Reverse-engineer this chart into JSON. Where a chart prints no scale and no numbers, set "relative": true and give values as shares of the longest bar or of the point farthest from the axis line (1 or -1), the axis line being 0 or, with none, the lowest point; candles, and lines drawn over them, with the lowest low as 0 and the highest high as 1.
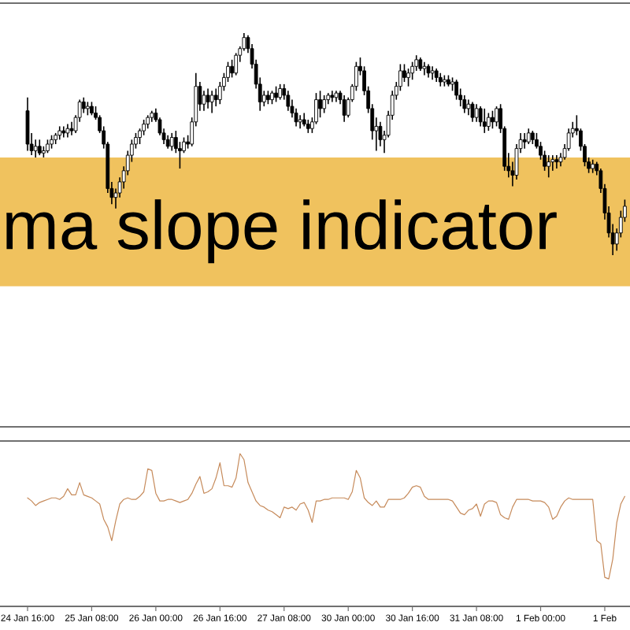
{
  "chart_data": [
    {
      "type": "candlestick",
      "relative": true,
      "color": "#000000",
      "categories": [
        null,
        null,
        null,
        null,
        null,
        null,
        null,
        null,
        null,
        null,
        null,
        null,
        null,
        null,
        null,
        null,
        null,
        null,
        null,
        null,
        null,
        null,
        null,
        null,
        null,
        null,
        null,
        null,
        null,
        null,
        null,
        null,
        null,
        null,
        null,
        null,
        null,
        null,
        null,
        null,
        null,
        null,
        null,
        null,
        null,
        null,
        null,
        null,
        null,
        null,
        null,
        null,
        null,
        null,
        null,
        null,
        null,
        null,
        null,
        null,
        null,
        null,
        null,
        null,
        null,
        null,
        null,
        null,
        null,
        null,
        null,
        null,
        null,
        null,
        null,
        null,
        null,
        null,
        null,
        null,
        null,
        null,
        null,
        null,
        null,
        null,
        null,
        null,
        null,
        null,
        null,
        null,
        null,
        null,
        null,
        null,
        null,
        null,
        null,
        null,
        null,
        null,
        null,
        null,
        null,
        null,
        null,
        null,
        null,
        null,
        null,
        null,
        null,
        null,
        null,
        null,
        null,
        null,
        null,
        null,
        null,
        null,
        null,
        null,
        null,
        null,
        null,
        null,
        null,
        null,
        null,
        null,
        null,
        null,
        null,
        null,
        null,
        null,
        null,
        null,
        null,
        null,
        null,
        null,
        null,
        null,
        null,
        null,
        null,
        null
      ],
      "ohlc": [
        [
          0.65,
          0.71,
          0.47,
          0.5
        ],
        [
          0.5,
          0.55,
          0.45,
          0.47
        ],
        [
          0.47,
          0.52,
          0.44,
          0.49
        ],
        [
          0.49,
          0.52,
          0.45,
          0.46
        ],
        [
          0.46,
          0.49,
          0.44,
          0.47
        ],
        [
          0.47,
          0.52,
          0.46,
          0.5
        ],
        [
          0.5,
          0.54,
          0.48,
          0.52
        ],
        [
          0.52,
          0.55,
          0.5,
          0.54
        ],
        [
          0.54,
          0.58,
          0.52,
          0.56
        ],
        [
          0.56,
          0.58,
          0.53,
          0.55
        ],
        [
          0.55,
          0.59,
          0.53,
          0.57
        ],
        [
          0.57,
          0.6,
          0.54,
          0.56
        ],
        [
          0.56,
          0.63,
          0.55,
          0.62
        ],
        [
          0.62,
          0.7,
          0.6,
          0.69
        ],
        [
          0.69,
          0.71,
          0.64,
          0.66
        ],
        [
          0.66,
          0.69,
          0.63,
          0.67
        ],
        [
          0.67,
          0.69,
          0.63,
          0.64
        ],
        [
          0.64,
          0.67,
          0.61,
          0.62
        ],
        [
          0.62,
          0.63,
          0.55,
          0.56
        ],
        [
          0.56,
          0.58,
          0.48,
          0.5
        ],
        [
          0.5,
          0.51,
          0.28,
          0.3
        ],
        [
          0.3,
          0.33,
          0.23,
          0.26
        ],
        [
          0.26,
          0.3,
          0.21,
          0.28
        ],
        [
          0.28,
          0.35,
          0.26,
          0.33
        ],
        [
          0.33,
          0.4,
          0.3,
          0.38
        ],
        [
          0.38,
          0.47,
          0.36,
          0.45
        ],
        [
          0.45,
          0.52,
          0.42,
          0.5
        ],
        [
          0.5,
          0.55,
          0.48,
          0.53
        ],
        [
          0.53,
          0.57,
          0.5,
          0.56
        ],
        [
          0.56,
          0.61,
          0.54,
          0.59
        ],
        [
          0.59,
          0.63,
          0.57,
          0.62
        ],
        [
          0.62,
          0.65,
          0.6,
          0.64
        ],
        [
          0.64,
          0.66,
          0.6,
          0.61
        ],
        [
          0.61,
          0.62,
          0.54,
          0.55
        ],
        [
          0.55,
          0.57,
          0.5,
          0.52
        ],
        [
          0.52,
          0.54,
          0.48,
          0.49
        ],
        [
          0.49,
          0.55,
          0.47,
          0.53
        ],
        [
          0.53,
          0.56,
          0.46,
          0.48
        ],
        [
          0.48,
          0.51,
          0.39,
          0.47
        ],
        [
          0.47,
          0.53,
          0.46,
          0.51
        ],
        [
          0.51,
          0.54,
          0.48,
          0.5
        ],
        [
          0.5,
          0.62,
          0.49,
          0.6
        ],
        [
          0.6,
          0.82,
          0.58,
          0.76
        ],
        [
          0.76,
          0.78,
          0.65,
          0.68
        ],
        [
          0.68,
          0.74,
          0.65,
          0.72
        ],
        [
          0.72,
          0.75,
          0.66,
          0.69
        ],
        [
          0.69,
          0.74,
          0.64,
          0.72
        ],
        [
          0.72,
          0.75,
          0.67,
          0.7
        ],
        [
          0.7,
          0.78,
          0.68,
          0.76
        ],
        [
          0.76,
          0.82,
          0.74,
          0.8
        ],
        [
          0.8,
          0.87,
          0.78,
          0.85
        ],
        [
          0.85,
          0.88,
          0.8,
          0.82
        ],
        [
          0.82,
          0.91,
          0.81,
          0.9
        ],
        [
          0.9,
          0.94,
          0.87,
          0.93
        ],
        [
          0.93,
          1.0,
          0.92,
          0.98
        ],
        [
          0.98,
          0.99,
          0.91,
          0.93
        ],
        [
          0.93,
          0.95,
          0.84,
          0.86
        ],
        [
          0.86,
          0.88,
          0.75,
          0.77
        ],
        [
          0.77,
          0.8,
          0.65,
          0.69
        ],
        [
          0.69,
          0.74,
          0.67,
          0.72
        ],
        [
          0.72,
          0.74,
          0.68,
          0.7
        ],
        [
          0.7,
          0.74,
          0.68,
          0.73
        ],
        [
          0.73,
          0.76,
          0.69,
          0.71
        ],
        [
          0.71,
          0.77,
          0.7,
          0.75
        ],
        [
          0.75,
          0.77,
          0.7,
          0.72
        ],
        [
          0.72,
          0.74,
          0.65,
          0.67
        ],
        [
          0.67,
          0.7,
          0.62,
          0.64
        ],
        [
          0.64,
          0.66,
          0.58,
          0.6
        ],
        [
          0.6,
          0.63,
          0.57,
          0.61
        ],
        [
          0.61,
          0.64,
          0.58,
          0.59
        ],
        [
          0.59,
          0.61,
          0.55,
          0.57
        ],
        [
          0.57,
          0.62,
          0.55,
          0.6
        ],
        [
          0.6,
          0.73,
          0.59,
          0.7
        ],
        [
          0.7,
          0.74,
          0.62,
          0.66
        ],
        [
          0.66,
          0.72,
          0.64,
          0.7
        ],
        [
          0.7,
          0.73,
          0.68,
          0.72
        ],
        [
          0.72,
          0.74,
          0.69,
          0.71
        ],
        [
          0.71,
          0.74,
          0.69,
          0.73
        ],
        [
          0.73,
          0.74,
          0.68,
          0.7
        ],
        [
          0.7,
          0.72,
          0.6,
          0.63
        ],
        [
          0.63,
          0.71,
          0.62,
          0.7
        ],
        [
          0.7,
          0.77,
          0.69,
          0.76
        ],
        [
          0.76,
          0.87,
          0.74,
          0.85
        ],
        [
          0.85,
          0.89,
          0.81,
          0.83
        ],
        [
          0.83,
          0.85,
          0.72,
          0.74
        ],
        [
          0.74,
          0.76,
          0.64,
          0.66
        ],
        [
          0.66,
          0.68,
          0.52,
          0.56
        ],
        [
          0.56,
          0.62,
          0.47,
          0.58
        ],
        [
          0.58,
          0.6,
          0.49,
          0.52
        ],
        [
          0.52,
          0.56,
          0.46,
          0.54
        ],
        [
          0.54,
          0.65,
          0.53,
          0.63
        ],
        [
          0.63,
          0.74,
          0.61,
          0.72
        ],
        [
          0.72,
          0.78,
          0.7,
          0.76
        ],
        [
          0.76,
          0.86,
          0.74,
          0.83
        ],
        [
          0.83,
          0.86,
          0.78,
          0.8
        ],
        [
          0.8,
          0.84,
          0.76,
          0.82
        ],
        [
          0.82,
          0.87,
          0.79,
          0.85
        ],
        [
          0.85,
          0.9,
          0.83,
          0.88
        ],
        [
          0.88,
          0.89,
          0.83,
          0.84
        ],
        [
          0.84,
          0.87,
          0.81,
          0.85
        ],
        [
          0.85,
          0.86,
          0.8,
          0.82
        ],
        [
          0.82,
          0.85,
          0.79,
          0.83
        ],
        [
          0.83,
          0.84,
          0.78,
          0.8
        ],
        [
          0.8,
          0.82,
          0.76,
          0.78
        ],
        [
          0.78,
          0.81,
          0.76,
          0.79
        ],
        [
          0.79,
          0.81,
          0.76,
          0.77
        ],
        [
          0.77,
          0.8,
          0.74,
          0.78
        ],
        [
          0.78,
          0.79,
          0.7,
          0.72
        ],
        [
          0.72,
          0.75,
          0.67,
          0.7
        ],
        [
          0.7,
          0.72,
          0.64,
          0.66
        ],
        [
          0.66,
          0.7,
          0.63,
          0.68
        ],
        [
          0.68,
          0.69,
          0.6,
          0.62
        ],
        [
          0.62,
          0.68,
          0.6,
          0.66
        ],
        [
          0.66,
          0.67,
          0.58,
          0.6
        ],
        [
          0.6,
          0.66,
          0.55,
          0.58
        ],
        [
          0.58,
          0.64,
          0.56,
          0.62
        ],
        [
          0.62,
          0.65,
          0.57,
          0.6
        ],
        [
          0.6,
          0.67,
          0.58,
          0.66
        ],
        [
          0.66,
          0.68,
          0.55,
          0.57
        ],
        [
          0.57,
          0.58,
          0.38,
          0.4
        ],
        [
          0.4,
          0.46,
          0.35,
          0.38
        ],
        [
          0.38,
          0.42,
          0.31,
          0.36
        ],
        [
          0.36,
          0.5,
          0.34,
          0.48
        ],
        [
          0.48,
          0.55,
          0.46,
          0.52
        ],
        [
          0.52,
          0.55,
          0.48,
          0.51
        ],
        [
          0.51,
          0.57,
          0.5,
          0.55
        ],
        [
          0.55,
          0.56,
          0.5,
          0.52
        ],
        [
          0.52,
          0.55,
          0.48,
          0.49
        ],
        [
          0.49,
          0.51,
          0.43,
          0.45
        ],
        [
          0.45,
          0.47,
          0.38,
          0.4
        ],
        [
          0.4,
          0.45,
          0.35,
          0.42
        ],
        [
          0.42,
          0.45,
          0.38,
          0.43
        ],
        [
          0.43,
          0.45,
          0.39,
          0.42
        ],
        [
          0.42,
          0.46,
          0.4,
          0.44
        ],
        [
          0.44,
          0.5,
          0.43,
          0.48
        ],
        [
          0.48,
          0.57,
          0.47,
          0.55
        ],
        [
          0.55,
          0.6,
          0.53,
          0.57
        ],
        [
          0.57,
          0.63,
          0.54,
          0.56
        ],
        [
          0.56,
          0.57,
          0.47,
          0.49
        ],
        [
          0.49,
          0.5,
          0.4,
          0.42
        ],
        [
          0.42,
          0.44,
          0.37,
          0.39
        ],
        [
          0.39,
          0.43,
          0.37,
          0.41
        ],
        [
          0.41,
          0.42,
          0.36,
          0.38
        ],
        [
          0.38,
          0.39,
          0.28,
          0.3
        ],
        [
          0.3,
          0.32,
          0.16,
          0.19
        ],
        [
          0.19,
          0.22,
          0.08,
          0.1
        ],
        [
          0.1,
          0.14,
          0.0,
          0.05
        ],
        [
          0.05,
          0.12,
          0.02,
          0.1
        ],
        [
          0.1,
          0.2,
          0.08,
          0.17
        ],
        [
          0.17,
          0.25,
          0.15,
          0.22
        ]
      ],
      "bands": [
        {
          "axis": "y",
          "from": -0.14,
          "to": 0.44,
          "label": "ma slope indicator",
          "color": "#f0c25e"
        }
      ]
    },
    {
      "type": "line",
      "relative": true,
      "color": "#c68a5a",
      "tick_labels": "x",
      "categories": [
        "24 Jan 16:00",
        null,
        null,
        null,
        null,
        null,
        null,
        null,
        null,
        null,
        null,
        null,
        null,
        null,
        null,
        null,
        "25 Jan 08:00",
        null,
        null,
        null,
        null,
        null,
        null,
        null,
        null,
        null,
        null,
        null,
        null,
        null,
        null,
        null,
        "26 Jan 00:00",
        null,
        null,
        null,
        null,
        null,
        null,
        null,
        null,
        null,
        null,
        null,
        null,
        null,
        null,
        null,
        "26 Jan 16:00",
        null,
        null,
        null,
        null,
        null,
        null,
        null,
        null,
        null,
        null,
        null,
        null,
        null,
        null,
        null,
        "27 Jan 08:00",
        null,
        null,
        null,
        null,
        null,
        null,
        null,
        null,
        null,
        null,
        null,
        null,
        null,
        null,
        null,
        "30 Jan 00:00",
        null,
        null,
        null,
        null,
        null,
        null,
        null,
        null,
        null,
        null,
        null,
        null,
        null,
        null,
        null,
        "30 Jan 16:00",
        null,
        null,
        null,
        null,
        null,
        null,
        null,
        null,
        null,
        null,
        null,
        null,
        null,
        null,
        null,
        "31 Jan 08:00",
        null,
        null,
        null,
        null,
        null,
        null,
        null,
        null,
        null,
        null,
        null,
        null,
        null,
        null,
        null,
        "1 Feb 00:00",
        null,
        null,
        null,
        null,
        null,
        null,
        null,
        null,
        null,
        null,
        null,
        null,
        null,
        null,
        null,
        "1 Feb",
        null,
        null,
        null,
        null,
        null
      ],
      "values": [
        0.71,
        0.69,
        0.66,
        0.68,
        0.69,
        0.7,
        0.71,
        0.71,
        0.7,
        0.72,
        0.77,
        0.73,
        0.73,
        0.81,
        0.73,
        0.72,
        0.71,
        0.69,
        0.67,
        0.57,
        0.52,
        0.43,
        0.56,
        0.67,
        0.7,
        0.71,
        0.7,
        0.7,
        0.72,
        0.75,
        0.9,
        0.89,
        0.74,
        0.69,
        0.69,
        0.7,
        0.7,
        0.69,
        0.68,
        0.69,
        0.7,
        0.74,
        0.8,
        0.85,
        0.74,
        0.75,
        0.77,
        0.84,
        0.94,
        0.79,
        0.79,
        0.78,
        0.84,
        1.0,
        0.96,
        0.81,
        0.75,
        0.69,
        0.66,
        0.65,
        0.63,
        0.62,
        0.6,
        0.58,
        0.65,
        0.64,
        0.65,
        0.63,
        0.67,
        0.68,
        0.63,
        0.55,
        0.69,
        0.69,
        0.7,
        0.7,
        0.71,
        0.71,
        0.71,
        0.71,
        0.7,
        0.75,
        0.89,
        0.84,
        0.71,
        0.68,
        0.66,
        0.69,
        0.65,
        0.65,
        0.7,
        0.7,
        0.7,
        0.7,
        0.71,
        0.74,
        0.78,
        0.79,
        0.78,
        0.72,
        0.7,
        0.7,
        0.7,
        0.7,
        0.7,
        0.7,
        0.69,
        0.65,
        0.61,
        0.6,
        0.63,
        0.64,
        0.67,
        0.59,
        0.67,
        0.69,
        0.69,
        0.68,
        0.6,
        0.58,
        0.57,
        0.65,
        0.7,
        0.7,
        0.7,
        0.7,
        0.69,
        0.69,
        0.69,
        0.68,
        0.65,
        0.57,
        0.59,
        0.65,
        0.69,
        0.71,
        0.7,
        0.7,
        0.7,
        0.7,
        0.7,
        0.7,
        0.43,
        0.41,
        0.19,
        0.18,
        0.31,
        0.55,
        0.67,
        0.72
      ]
    }
  ]
}
